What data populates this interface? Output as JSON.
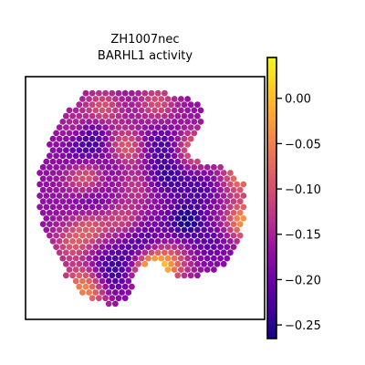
{
  "chart_data": {
    "type": "heatmap",
    "title": "ZH1007nec",
    "subtitle": "BARHL1 activity",
    "xlabel": "",
    "ylabel": "",
    "colormap": "plasma",
    "colorbar": {
      "range": [
        -0.265,
        0.045
      ],
      "ticks": [
        {
          "value": 0.0,
          "label": "0.00"
        },
        {
          "value": -0.05,
          "label": "−0.05"
        },
        {
          "value": -0.1,
          "label": "−0.10"
        },
        {
          "value": -0.15,
          "label": "−0.15"
        },
        {
          "value": -0.2,
          "label": "−0.20"
        },
        {
          "value": -0.25,
          "label": "−0.25"
        }
      ]
    },
    "grid": false,
    "legend": "none",
    "hotspots": [
      {
        "x": 53,
        "y": 82,
        "value": 0.03
      },
      {
        "x": 95,
        "y": 60,
        "value": -0.03
      },
      {
        "x": 93,
        "y": 40,
        "value": -0.06
      },
      {
        "x": 40,
        "y": 28,
        "value": -0.05
      },
      {
        "x": 72,
        "y": 28,
        "value": -0.07
      },
      {
        "x": 40,
        "y": 58,
        "value": -0.1
      },
      {
        "x": 25,
        "y": 62,
        "value": -0.09
      },
      {
        "x": 22,
        "y": 40,
        "value": -0.08
      },
      {
        "x": 16,
        "y": 70,
        "value": -0.1
      },
      {
        "x": 20,
        "y": 88,
        "value": -0.09
      },
      {
        "x": 62,
        "y": 78,
        "value": -0.1
      },
      {
        "x": 30,
        "y": 10,
        "value": -0.09
      },
      {
        "x": 55,
        "y": 7,
        "value": -0.1
      },
      {
        "x": 20,
        "y": 18,
        "value": -0.11
      },
      {
        "x": 45,
        "y": 45,
        "value": -0.1
      },
      {
        "x": 25,
        "y": 93,
        "value": -0.1
      },
      {
        "x": 30,
        "y": 75,
        "value": -0.12
      }
    ],
    "coldspots": [
      {
        "x": 25,
        "y": 20,
        "value": -0.26
      },
      {
        "x": 68,
        "y": 60,
        "value": -0.26
      },
      {
        "x": 37,
        "y": 32,
        "value": -0.23
      },
      {
        "x": 57,
        "y": 26,
        "value": -0.23
      },
      {
        "x": 30,
        "y": 76,
        "value": -0.24
      },
      {
        "x": 50,
        "y": 68,
        "value": -0.22
      },
      {
        "x": 25,
        "y": 52,
        "value": -0.22
      },
      {
        "x": 42,
        "y": 50,
        "value": -0.21
      },
      {
        "x": 62,
        "y": 40,
        "value": -0.22
      },
      {
        "x": 75,
        "y": 45,
        "value": -0.22
      },
      {
        "x": 42,
        "y": 75,
        "value": -0.21
      },
      {
        "x": 80,
        "y": 70,
        "value": -0.21
      },
      {
        "x": 20,
        "y": 30,
        "value": -0.22
      },
      {
        "x": 35,
        "y": 85,
        "value": -0.23
      },
      {
        "x": 55,
        "y": 40,
        "value": -0.2
      }
    ],
    "baseline": -0.17
  }
}
